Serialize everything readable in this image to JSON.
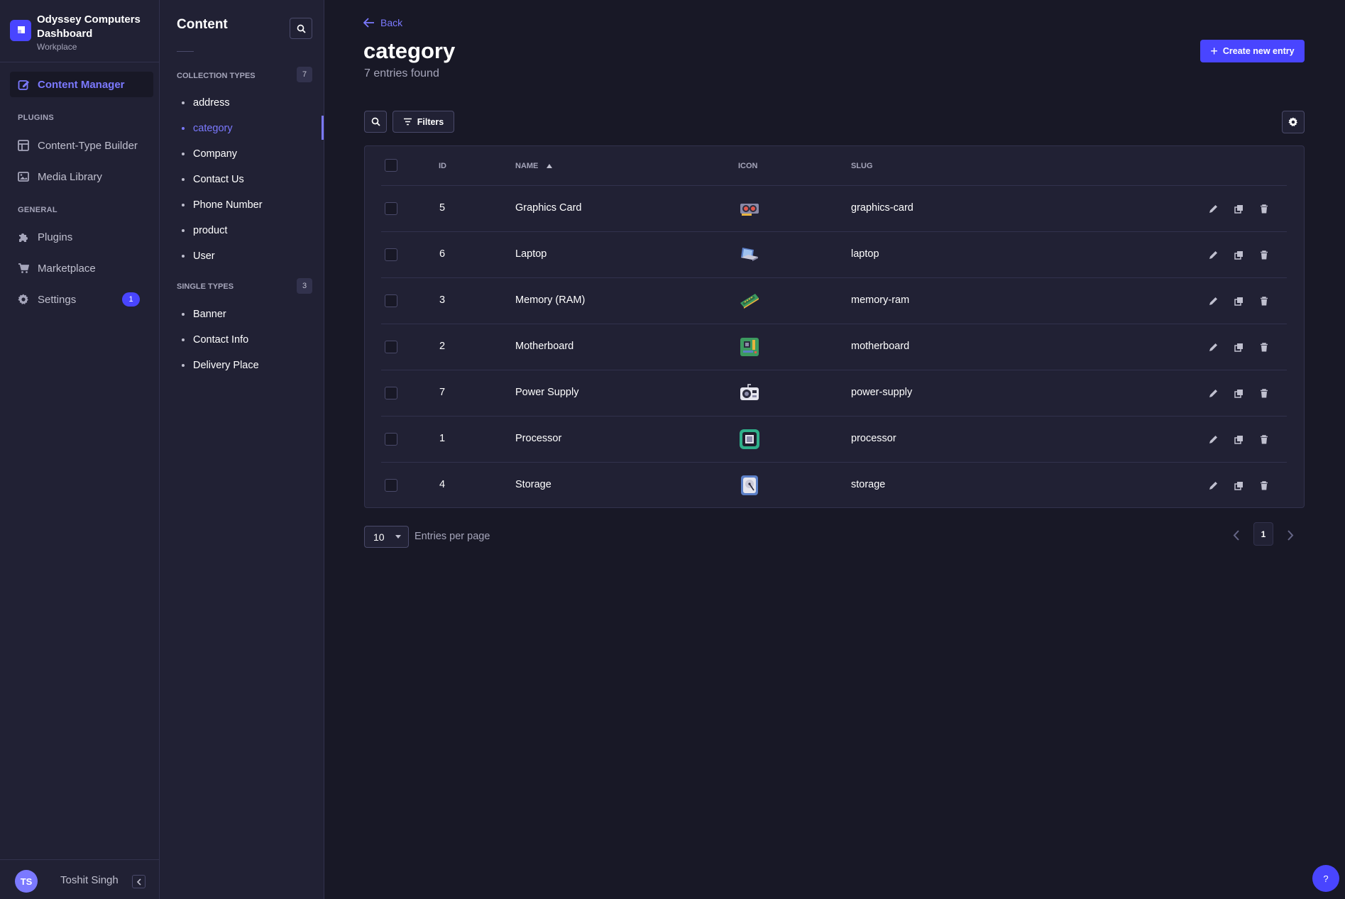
{
  "brand": {
    "title": "Odyssey Computers Dashboard",
    "subtitle": "Workplace"
  },
  "mainnav": {
    "content_manager": "Content Manager",
    "plugins_section": "PLUGINS",
    "content_type_builder": "Content-Type Builder",
    "media_library": "Media Library",
    "general_section": "GENERAL",
    "plugins": "Plugins",
    "marketplace": "Marketplace",
    "settings": "Settings",
    "settings_badge": "1"
  },
  "user": {
    "initials": "TS",
    "name": "Toshit Singh"
  },
  "subnav": {
    "title": "Content",
    "collection_section": "COLLECTION TYPES",
    "collection_count": "7",
    "collection_items": [
      "address",
      "category",
      "Company",
      "Contact Us",
      "Phone Number",
      "product",
      "User"
    ],
    "single_section": "SINGLE TYPES",
    "single_count": "3",
    "single_items": [
      "Banner",
      "Contact Info",
      "Delivery Place"
    ]
  },
  "header": {
    "back": "Back",
    "title": "category",
    "subtitle": "7 entries found",
    "create": "Create new entry"
  },
  "toolbar": {
    "filters": "Filters"
  },
  "table": {
    "columns": {
      "id": "ID",
      "name": "NAME",
      "icon": "ICON",
      "slug": "SLUG"
    },
    "rows": [
      {
        "id": "5",
        "name": "Graphics Card",
        "icon": "graphics-card-icon",
        "slug": "graphics-card"
      },
      {
        "id": "6",
        "name": "Laptop",
        "icon": "laptop-icon",
        "slug": "laptop"
      },
      {
        "id": "3",
        "name": "Memory (RAM)",
        "icon": "ram-icon",
        "slug": "memory-ram"
      },
      {
        "id": "2",
        "name": "Motherboard",
        "icon": "motherboard-icon",
        "slug": "motherboard"
      },
      {
        "id": "7",
        "name": "Power Supply",
        "icon": "power-supply-icon",
        "slug": "power-supply"
      },
      {
        "id": "1",
        "name": "Processor",
        "icon": "processor-icon",
        "slug": "processor"
      },
      {
        "id": "4",
        "name": "Storage",
        "icon": "storage-icon",
        "slug": "storage"
      }
    ]
  },
  "pagination": {
    "per_page": "10",
    "per_page_label": "Entries per page",
    "current_page": "1"
  },
  "help": "?",
  "colors": {
    "accent": "#4945ff",
    "accent_text": "#7b79ff",
    "background": "#181826",
    "panel": "#212134"
  }
}
